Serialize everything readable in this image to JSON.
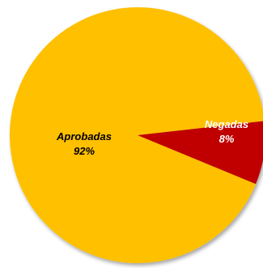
{
  "chart_data": {
    "type": "pie",
    "categories": [
      "Aprobadas",
      "Negadas"
    ],
    "values": [
      92,
      8
    ],
    "labels": [
      {
        "name": "Aprobadas",
        "value": "92%"
      },
      {
        "name": "Negadas",
        "value": "8%"
      }
    ],
    "colors": [
      "#FFC000",
      "#C00000"
    ],
    "label_colors": [
      "#000000",
      "#FFFFFF"
    ],
    "legend": "none",
    "title": ""
  }
}
